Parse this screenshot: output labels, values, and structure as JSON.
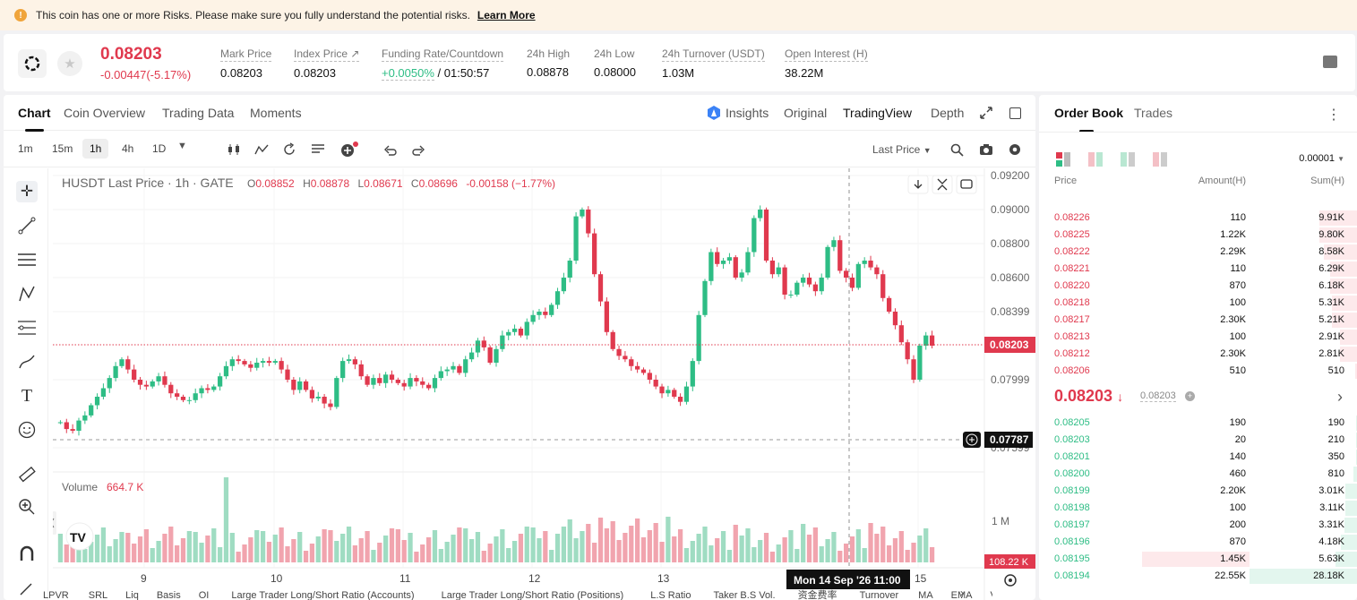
{
  "banner": {
    "text": "This coin has one or more Risks. Please make sure you fully understand the potential risks.",
    "link": "Learn More"
  },
  "ticker": {
    "price": "0.08203",
    "change": "-0.00447(-5.17%)",
    "stats": [
      {
        "label": "Mark Price",
        "value": "0.08203"
      },
      {
        "label": "Index Price ↗",
        "value": "0.08203"
      },
      {
        "label": "Funding Rate/Countdown",
        "value": "+0.0050%",
        "value2": " / 01:50:57"
      },
      {
        "label": "24h High",
        "value": "0.08878"
      },
      {
        "label": "24h Low",
        "value": "0.08000"
      },
      {
        "label": "24h Turnover (USDT)",
        "value": "1.03M"
      },
      {
        "label": "Open Interest (H)",
        "value": "38.22M"
      }
    ]
  },
  "chart_tabs": [
    "Chart",
    "Coin Overview",
    "Trading Data",
    "Moments"
  ],
  "chart_views": [
    "Insights",
    "Original",
    "TradingView",
    "Depth"
  ],
  "timeframes": [
    "1m",
    "15m",
    "1h",
    "4h",
    "1D"
  ],
  "last_price_select": "Last Price",
  "legend": {
    "title": "HUSDT Last Price · 1h · GATE",
    "o_label": "O",
    "o": "0.08852",
    "h_label": "H",
    "h": "0.08878",
    "l_label": "L",
    "l": "0.08671",
    "c_label": "C",
    "c": "0.08696",
    "chg": "-0.00158 (−1.77%)"
  },
  "volume_legend": {
    "label": "Volume",
    "value": "664.7 K"
  },
  "price_axis": [
    "0.09200",
    "0.09000",
    "0.08800",
    "0.08600",
    "0.08399",
    "0.07999",
    "0.07599"
  ],
  "current_price_tag": "0.08203",
  "cursor_price_tag": "0.07787",
  "volume_axis": "1 M",
  "volume_tag": "108.22 K",
  "x_axis": [
    "9",
    "10",
    "11",
    "12",
    "13",
    "15"
  ],
  "crosshair_time": "Mon 14 Sep '26   11:00",
  "indicators": [
    "LPVR",
    "SRL",
    "Liq",
    "Basis",
    "OI",
    "Large Trader Long/Short Ratio (Accounts)",
    "Large Trader Long/Short Ratio (Positions)",
    "L.S Ratio",
    "Taker B.S Vol.",
    "资金费率",
    "Turnover",
    "MA",
    "EMA",
    "Volu"
  ],
  "orderbook": {
    "tabs": [
      "Order Book",
      "Trades"
    ],
    "precision": "0.00001",
    "headers": {
      "price": "Price",
      "amount": "Amount(H)",
      "sum": "Sum(H)"
    },
    "asks": [
      {
        "price": "0.08226",
        "amount": "110",
        "sum": "9.91K",
        "depth": 0.35
      },
      {
        "price": "0.08225",
        "amount": "1.22K",
        "sum": "9.80K",
        "depth": 0.35
      },
      {
        "price": "0.08222",
        "amount": "2.29K",
        "sum": "8.58K",
        "depth": 0.31
      },
      {
        "price": "0.08221",
        "amount": "110",
        "sum": "6.29K",
        "depth": 0.25
      },
      {
        "price": "0.08220",
        "amount": "870",
        "sum": "6.18K",
        "depth": 0.25
      },
      {
        "price": "0.08218",
        "amount": "100",
        "sum": "5.31K",
        "depth": 0.23
      },
      {
        "price": "0.08217",
        "amount": "2.30K",
        "sum": "5.21K",
        "depth": 0.23
      },
      {
        "price": "0.08213",
        "amount": "100",
        "sum": "2.91K",
        "depth": 0.16
      },
      {
        "price": "0.08212",
        "amount": "2.30K",
        "sum": "2.81K",
        "depth": 0.16
      },
      {
        "price": "0.08206",
        "amount": "510",
        "sum": "510",
        "depth": 0.02
      }
    ],
    "mid_price": "0.08203",
    "mid_mark": "0.08203",
    "bids": [
      {
        "price": "0.08205",
        "amount": "190",
        "sum": "190",
        "depth": 0.01,
        "abar": 0
      },
      {
        "price": "0.08203",
        "amount": "20",
        "sum": "210",
        "depth": 0.01,
        "abar": 0
      },
      {
        "price": "0.08201",
        "amount": "140",
        "sum": "350",
        "depth": 0.01,
        "abar": 0
      },
      {
        "price": "0.08200",
        "amount": "460",
        "sum": "810",
        "depth": 0.03,
        "abar": 0
      },
      {
        "price": "0.08199",
        "amount": "2.20K",
        "sum": "3.01K",
        "depth": 0.11,
        "abar": 0
      },
      {
        "price": "0.08198",
        "amount": "100",
        "sum": "3.11K",
        "depth": 0.11,
        "abar": 0
      },
      {
        "price": "0.08197",
        "amount": "200",
        "sum": "3.31K",
        "depth": 0.12,
        "abar": 0
      },
      {
        "price": "0.08196",
        "amount": "870",
        "sum": "4.18K",
        "depth": 0.15,
        "abar": 0
      },
      {
        "price": "0.08195",
        "amount": "1.45K",
        "sum": "5.63K",
        "depth": 0.2,
        "abar": 0.4
      },
      {
        "price": "0.08194",
        "amount": "22.55K",
        "sum": "28.18K",
        "depth": 1.0,
        "abar": 0
      }
    ]
  },
  "colors": {
    "up": "#2ebd85",
    "down": "#e0394e"
  }
}
